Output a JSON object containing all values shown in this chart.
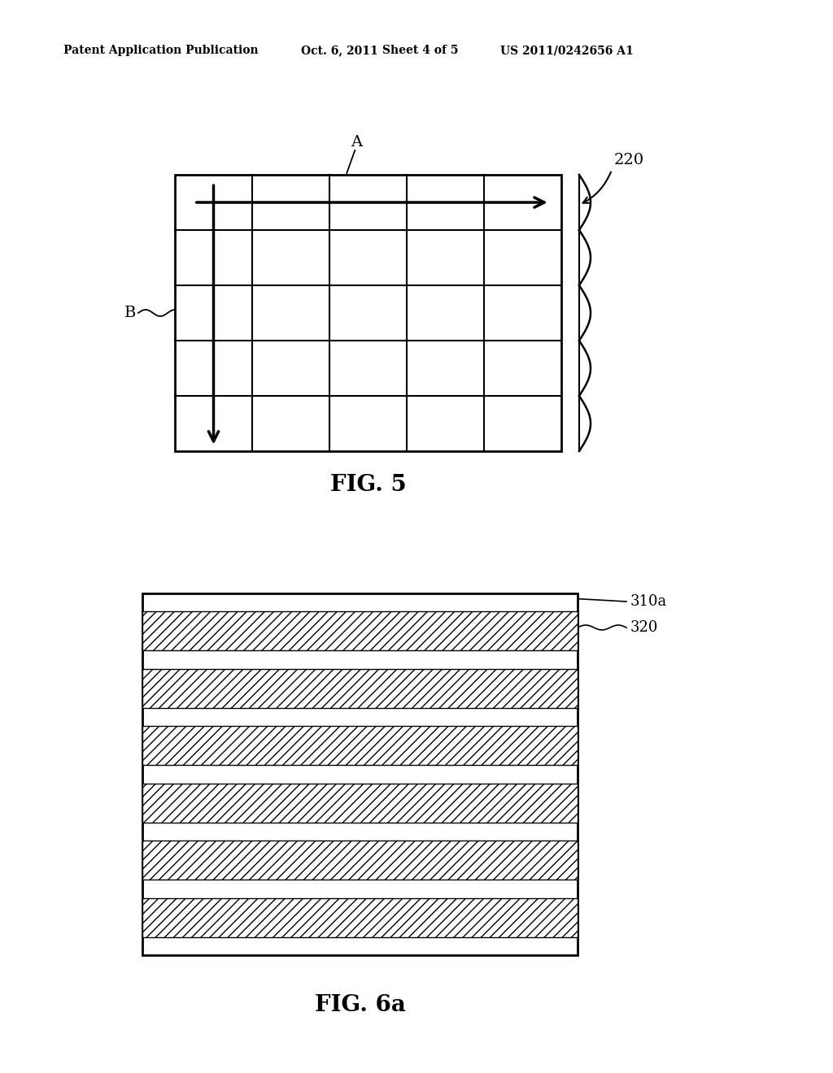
{
  "background_color": "#ffffff",
  "header_text": "Patent Application Publication",
  "header_date": "Oct. 6, 2011",
  "header_sheet": "Sheet 4 of 5",
  "header_patent": "US 2011/0242656 A1",
  "fig5_label": "FIG. 5",
  "fig6a_label": "FIG. 6a",
  "fig5_grid_rows": 5,
  "fig5_grid_cols": 5,
  "fig5_label_220": "220",
  "fig5_label_A": "A",
  "fig5_label_B": "B",
  "fig6a_label_310a": "310a",
  "fig6a_label_320": "320",
  "fig6a_num_hatched": 6
}
